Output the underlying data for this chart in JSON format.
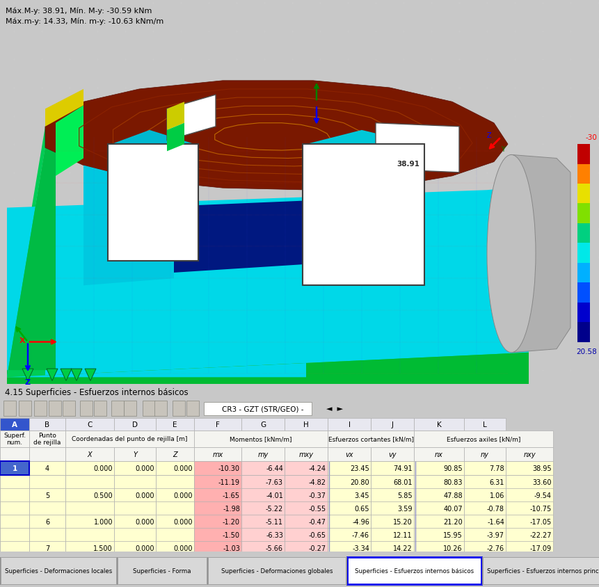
{
  "title_section": "4.15 Superficies - Esfuerzos internos básicos",
  "subtitle_line1": "Máx.M-y: 38.91, Mín. M-y: -30.59 kNm",
  "subtitle_line2": "Máx.m-y: 14.33, Mín. m-y: -10.63 kNm/m",
  "combo_text": "CR3 - GZT (STR/GEO) -",
  "col_letters": [
    "A",
    "B",
    "C",
    "D",
    "E",
    "F",
    "G",
    "H",
    "I",
    "J",
    "K",
    "L"
  ],
  "sub_headers": [
    "",
    "",
    "X",
    "Y",
    "Z",
    "mx",
    "my",
    "mxy",
    "vx",
    "vy",
    "nx",
    "ny",
    "nxy"
  ],
  "rows": [
    [
      "1",
      "4",
      "0.000",
      "0.000",
      "0.000",
      "-10.30",
      "-6.44",
      "-4.24",
      "23.45",
      "74.91",
      "90.85",
      "7.78",
      "38.95"
    ],
    [
      "",
      "",
      "",
      "",
      "",
      "-11.19",
      "-7.63",
      "-4.82",
      "20.80",
      "68.01",
      "80.83",
      "6.31",
      "33.60"
    ],
    [
      "",
      "5",
      "0.500",
      "0.000",
      "0.000",
      "-1.65",
      "-4.01",
      "-0.37",
      "3.45",
      "5.85",
      "47.88",
      "1.06",
      "-9.54"
    ],
    [
      "",
      "",
      "",
      "",
      "",
      "-1.98",
      "-5.22",
      "-0.55",
      "0.65",
      "3.59",
      "40.07",
      "-0.78",
      "-10.75"
    ],
    [
      "",
      "6",
      "1.000",
      "0.000",
      "0.000",
      "-1.20",
      "-5.11",
      "-0.47",
      "-4.96",
      "15.20",
      "21.20",
      "-1.64",
      "-17.05"
    ],
    [
      "",
      "",
      "",
      "",
      "",
      "-1.50",
      "-6.33",
      "-0.65",
      "-7.46",
      "12.11",
      "15.95",
      "-3.97",
      "-22.27"
    ],
    [
      "",
      "7",
      "1.500",
      "0.000",
      "0.000",
      "-1.03",
      "-5.66",
      "-0.27",
      "-3.34",
      "14.22",
      "10.26",
      "-2.76",
      "-17.09"
    ]
  ],
  "pink_cells_e": [
    0,
    1,
    2,
    3,
    4,
    5,
    6
  ],
  "pink_cells_f": [
    0,
    1,
    2,
    3,
    4,
    5,
    6
  ],
  "pink_cells_g": [
    0,
    1,
    2,
    3,
    4,
    5,
    6
  ],
  "tab_labels": [
    "Superficies - Deformaciones locales",
    "Superficies - Forma",
    "Superficies - Deformaciones globales",
    "Superficies - Esfuerzos internos básicos",
    "Superficies - Esfuerzos internos principales"
  ],
  "active_tab": 3,
  "cmap_colors": [
    "#00008b",
    "#0000cd",
    "#0050ff",
    "#00b0ff",
    "#00e8e8",
    "#00d080",
    "#80e000",
    "#e8e000",
    "#ff8000",
    "#c00000"
  ],
  "scale_max": "-30",
  "scale_min": "20.58",
  "label_38_91": "38.91",
  "bg_3d": "#f0f0f0",
  "row_yellow": "#ffffd0",
  "row_yellow2": "#fffff0",
  "pink_color": "#ffb0b0",
  "pink_light": "#ffd0d0",
  "col_A_blue_bg": "#3355cc",
  "grid_line_color": "#b8b8b8",
  "tab_bg": "#d8d8d8",
  "active_tab_bg": "#ffffff",
  "active_tab_border": "#0000ee"
}
